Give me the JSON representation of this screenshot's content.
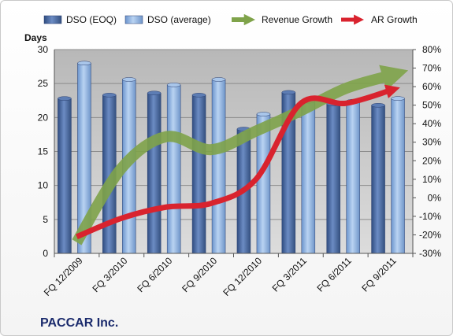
{
  "chart_data": {
    "type": "bar",
    "company": "PACCAR Inc.",
    "ylabel": "Days",
    "categories": [
      "FQ 12/2009",
      "FQ 3/2010",
      "FQ 6/2010",
      "FQ 9/2010",
      "FQ 12/2010",
      "FQ 3/2011",
      "FQ 6/2011",
      "FQ 9/2011"
    ],
    "ylim": [
      0,
      30
    ],
    "yticks": [
      "0",
      "5",
      "10",
      "15",
      "20",
      "25",
      "30"
    ],
    "y2lim": [
      -30,
      80
    ],
    "y2ticks": [
      "-30%",
      "-20%",
      "-10%",
      "0%",
      "10%",
      "20%",
      "30%",
      "40%",
      "50%",
      "60%",
      "70%",
      "80%"
    ],
    "series": [
      {
        "name": "DSO (EOQ)",
        "kind": "bar",
        "color": "#4f6fa8",
        "values": [
          22.8,
          23.3,
          23.6,
          23.3,
          18.3,
          23.7,
          22.0,
          21.8
        ]
      },
      {
        "name": "DSO (average)",
        "kind": "bar",
        "color": "#8fb2e0",
        "values": [
          28.0,
          25.6,
          24.8,
          25.6,
          20.5,
          22.4,
          22.4,
          22.8
        ]
      },
      {
        "name": "Revenue Growth",
        "kind": "line",
        "axis": "secondary",
        "color": "#7fa34a",
        "values": [
          -24,
          16,
          33,
          26,
          36,
          47,
          59,
          66
        ]
      },
      {
        "name": "AR Growth",
        "kind": "line",
        "axis": "secondary",
        "color": "#d9232e",
        "values": [
          -21,
          -11,
          -5,
          -3,
          10,
          51,
          51,
          58
        ]
      }
    ],
    "grid": true,
    "legend": "top"
  }
}
